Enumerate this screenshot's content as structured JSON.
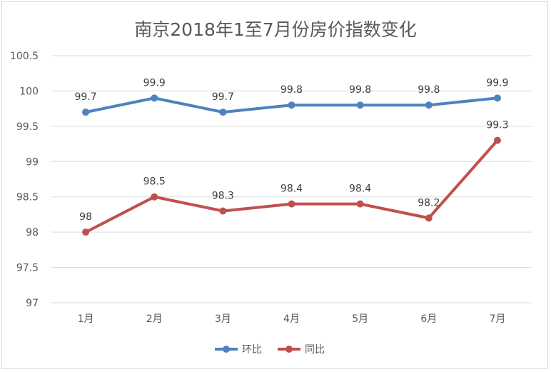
{
  "chart_data": {
    "type": "line",
    "title": "南京2018年1至7月份房价指数变化",
    "categories": [
      "1月",
      "2月",
      "3月",
      "4月",
      "5月",
      "6月",
      "7月"
    ],
    "series": [
      {
        "name": "环比",
        "color": "#4f81bd",
        "values": [
          99.7,
          99.9,
          99.7,
          99.8,
          99.8,
          99.8,
          99.9
        ]
      },
      {
        "name": "同比",
        "color": "#c0504d",
        "values": [
          98,
          98.5,
          98.3,
          98.4,
          98.4,
          98.2,
          99.3
        ]
      }
    ],
    "ylim": [
      97,
      100.5
    ],
    "yticks": [
      "97",
      "97.5",
      "98",
      "98.5",
      "99",
      "99.5",
      "100",
      "100.5"
    ],
    "grid": true,
    "legend": "bottom",
    "xlabel": "",
    "ylabel": ""
  }
}
